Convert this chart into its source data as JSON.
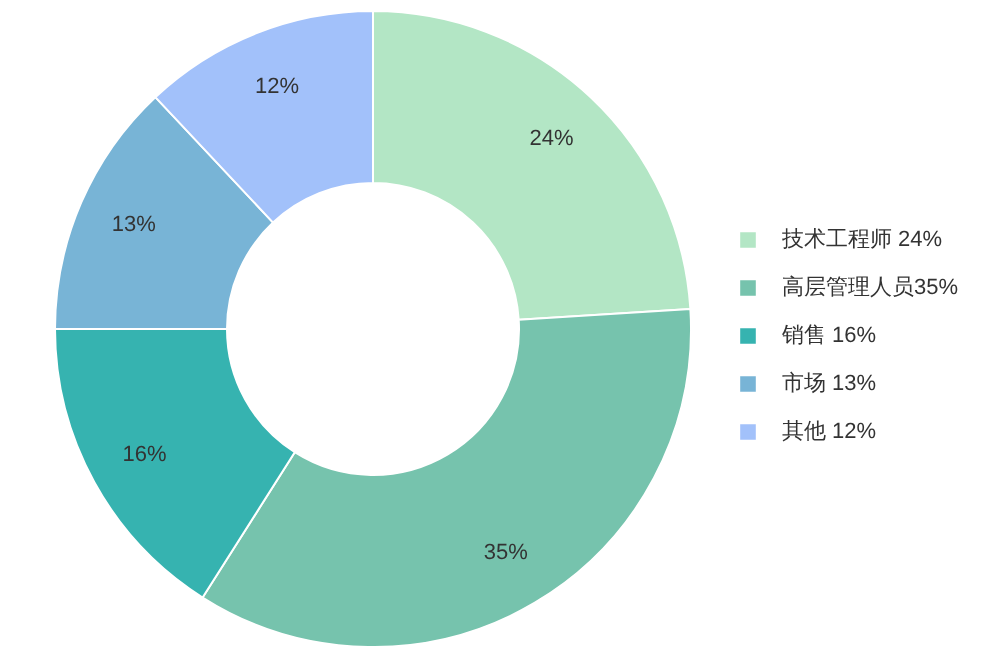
{
  "chart_data": {
    "type": "donut",
    "categories": [
      "技术工程师 24%",
      "高层管理人员35%",
      "销售 16%",
      "市场 13%",
      "其他 12%"
    ],
    "values": [
      24,
      35,
      16,
      13,
      12
    ],
    "value_labels": [
      "24%",
      "35%",
      "16%",
      "13%",
      "12%"
    ],
    "colors": [
      "#b3e6c5",
      "#76c3ad",
      "#36b3b0",
      "#78b4d6",
      "#a2c1fa"
    ],
    "legend": "right"
  }
}
